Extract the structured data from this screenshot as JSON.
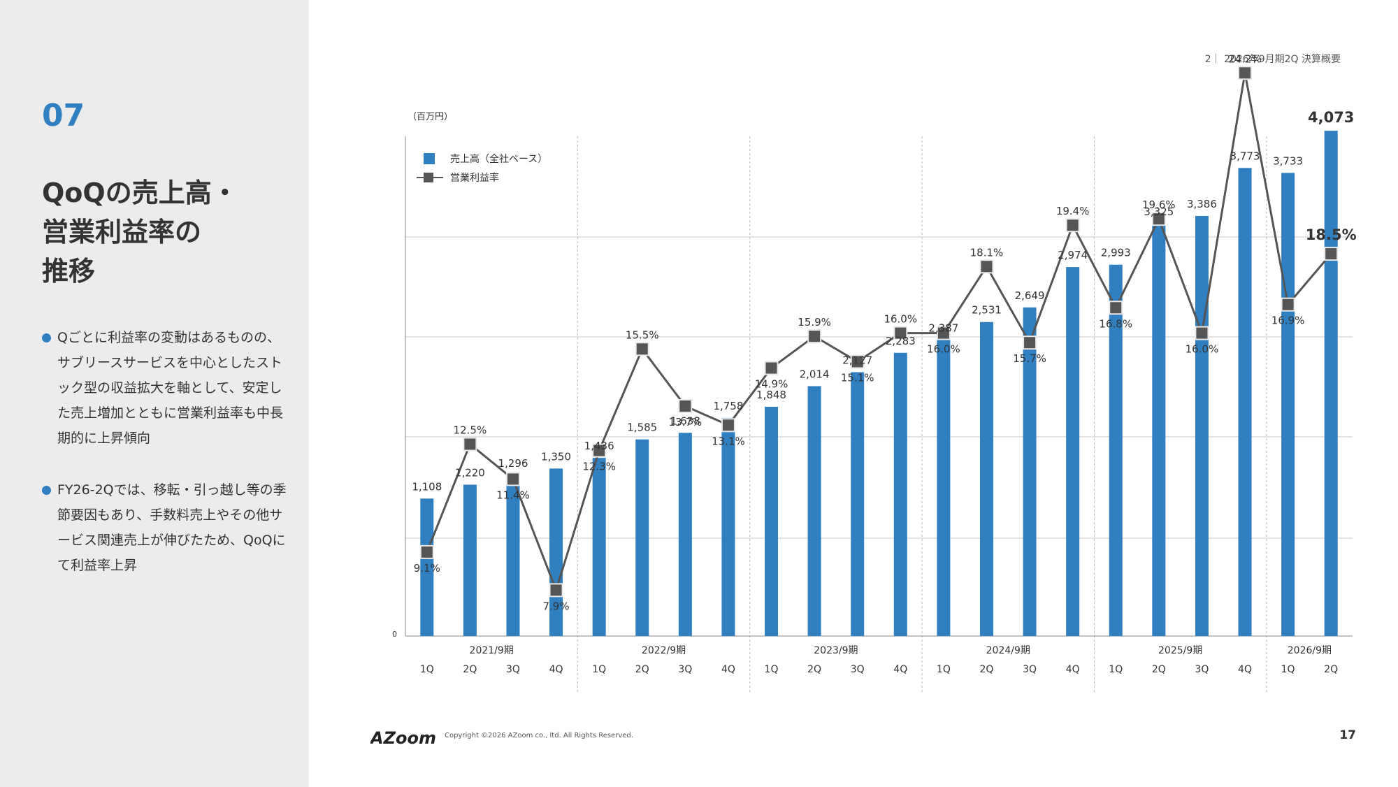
{
  "sidebar": {
    "section_number": "07",
    "title_lines": [
      "QoQの売上高・",
      "営業利益率の",
      "推移"
    ],
    "bullets": [
      "Qごとに利益率の変動はあるものの、サブリースサービスを中心としたストック型の収益拡大を軸として、安定した売上増加とともに営業利益率も中長期的に上昇傾向",
      "FY26-2Qでは、移転・引っ越し等の季節要因もあり、手数料売上やその他サービス関連売上が伸びたため、QoQにて利益率上昇"
    ]
  },
  "header": {
    "page_label": "2｜ 2026年9月期2Q 決算概要"
  },
  "footer": {
    "logo_text": "AZoom",
    "copyright": "Copyright ©2026 AZoom co., ltd. All Rights Reserved.",
    "page_number": "17"
  },
  "colors": {
    "bar": "#2f7fc1",
    "line": "#555555",
    "marker": "#555555",
    "accent": "#2f7fc1"
  },
  "chart_data": {
    "type": "bar",
    "unit_label": "（百万円）",
    "y_zero_label": "0",
    "legend": {
      "bar": "売上高（全社ベース）",
      "line": "営業利益率"
    },
    "years": [
      {
        "label": "2021/9期",
        "quarters": [
          "1Q",
          "2Q",
          "3Q",
          "4Q"
        ]
      },
      {
        "label": "2022/9期",
        "quarters": [
          "1Q",
          "2Q",
          "3Q",
          "4Q"
        ]
      },
      {
        "label": "2023/9期",
        "quarters": [
          "1Q",
          "2Q",
          "3Q",
          "4Q"
        ]
      },
      {
        "label": "2024/9期",
        "quarters": [
          "1Q",
          "2Q",
          "3Q",
          "4Q"
        ]
      },
      {
        "label": "2025/9期",
        "quarters": [
          "1Q",
          "2Q",
          "3Q",
          "4Q"
        ]
      },
      {
        "label": "2026/9期",
        "quarters": [
          "1Q",
          "2Q"
        ]
      }
    ],
    "series": [
      {
        "name": "売上高（全社ベース）",
        "type": "bar",
        "values": [
          1108,
          1220,
          1296,
          1350,
          1436,
          1585,
          1638,
          1758,
          1848,
          2014,
          2127,
          2283,
          2387,
          2531,
          2649,
          2974,
          2993,
          3325,
          3386,
          3773,
          3733,
          4073
        ],
        "labels": [
          "1,108",
          "1,220",
          "1,296",
          "1,350",
          "1,436",
          "1,585",
          "1,638",
          "1,758",
          "1,848",
          "2,014",
          "2,127",
          "2,283",
          "2,387",
          "2,531",
          "2,649",
          "2,974",
          "2,993",
          "3,325",
          "3,386",
          "3,773",
          "3,733",
          "4,073"
        ]
      },
      {
        "name": "営業利益率",
        "type": "line",
        "values": [
          9.1,
          12.5,
          11.4,
          7.9,
          12.3,
          15.5,
          13.7,
          13.1,
          14.9,
          15.9,
          15.1,
          16.0,
          16.0,
          18.1,
          15.7,
          19.4,
          16.8,
          19.6,
          16.0,
          24.2,
          16.9,
          18.5
        ],
        "labels": [
          "9.1%",
          "12.5%",
          "11.4%",
          "7.9%",
          "12.3%",
          "15.5%",
          "13.7%",
          "13.1%",
          "14.9%",
          "15.9%",
          "15.1%",
          "16.0%",
          "16.0%",
          "18.1%",
          "15.7%",
          "19.4%",
          "16.8%",
          "19.6%",
          "16.0%",
          "24.2%",
          "16.9%",
          "18.5%"
        ]
      }
    ]
  }
}
